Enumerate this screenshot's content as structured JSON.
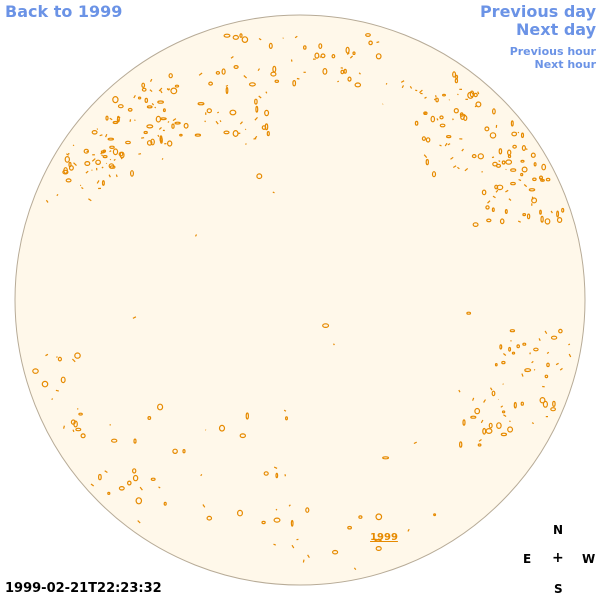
{
  "nav": {
    "back": "Back to 1999",
    "previous_day": "Previous day",
    "next_day": "Next day",
    "previous_hour": "Previous hour",
    "next_hour": "Next hour"
  },
  "disk": {
    "year_link": "1999",
    "fill_color": "#fff8ea",
    "edge_color": "#b7ab97",
    "feature_color": "#e68a00"
  },
  "compass": {
    "north": "N",
    "east": "E",
    "west": "W",
    "south": "S",
    "center": "+"
  },
  "timestamp": "1999-02-21T22:23:32"
}
